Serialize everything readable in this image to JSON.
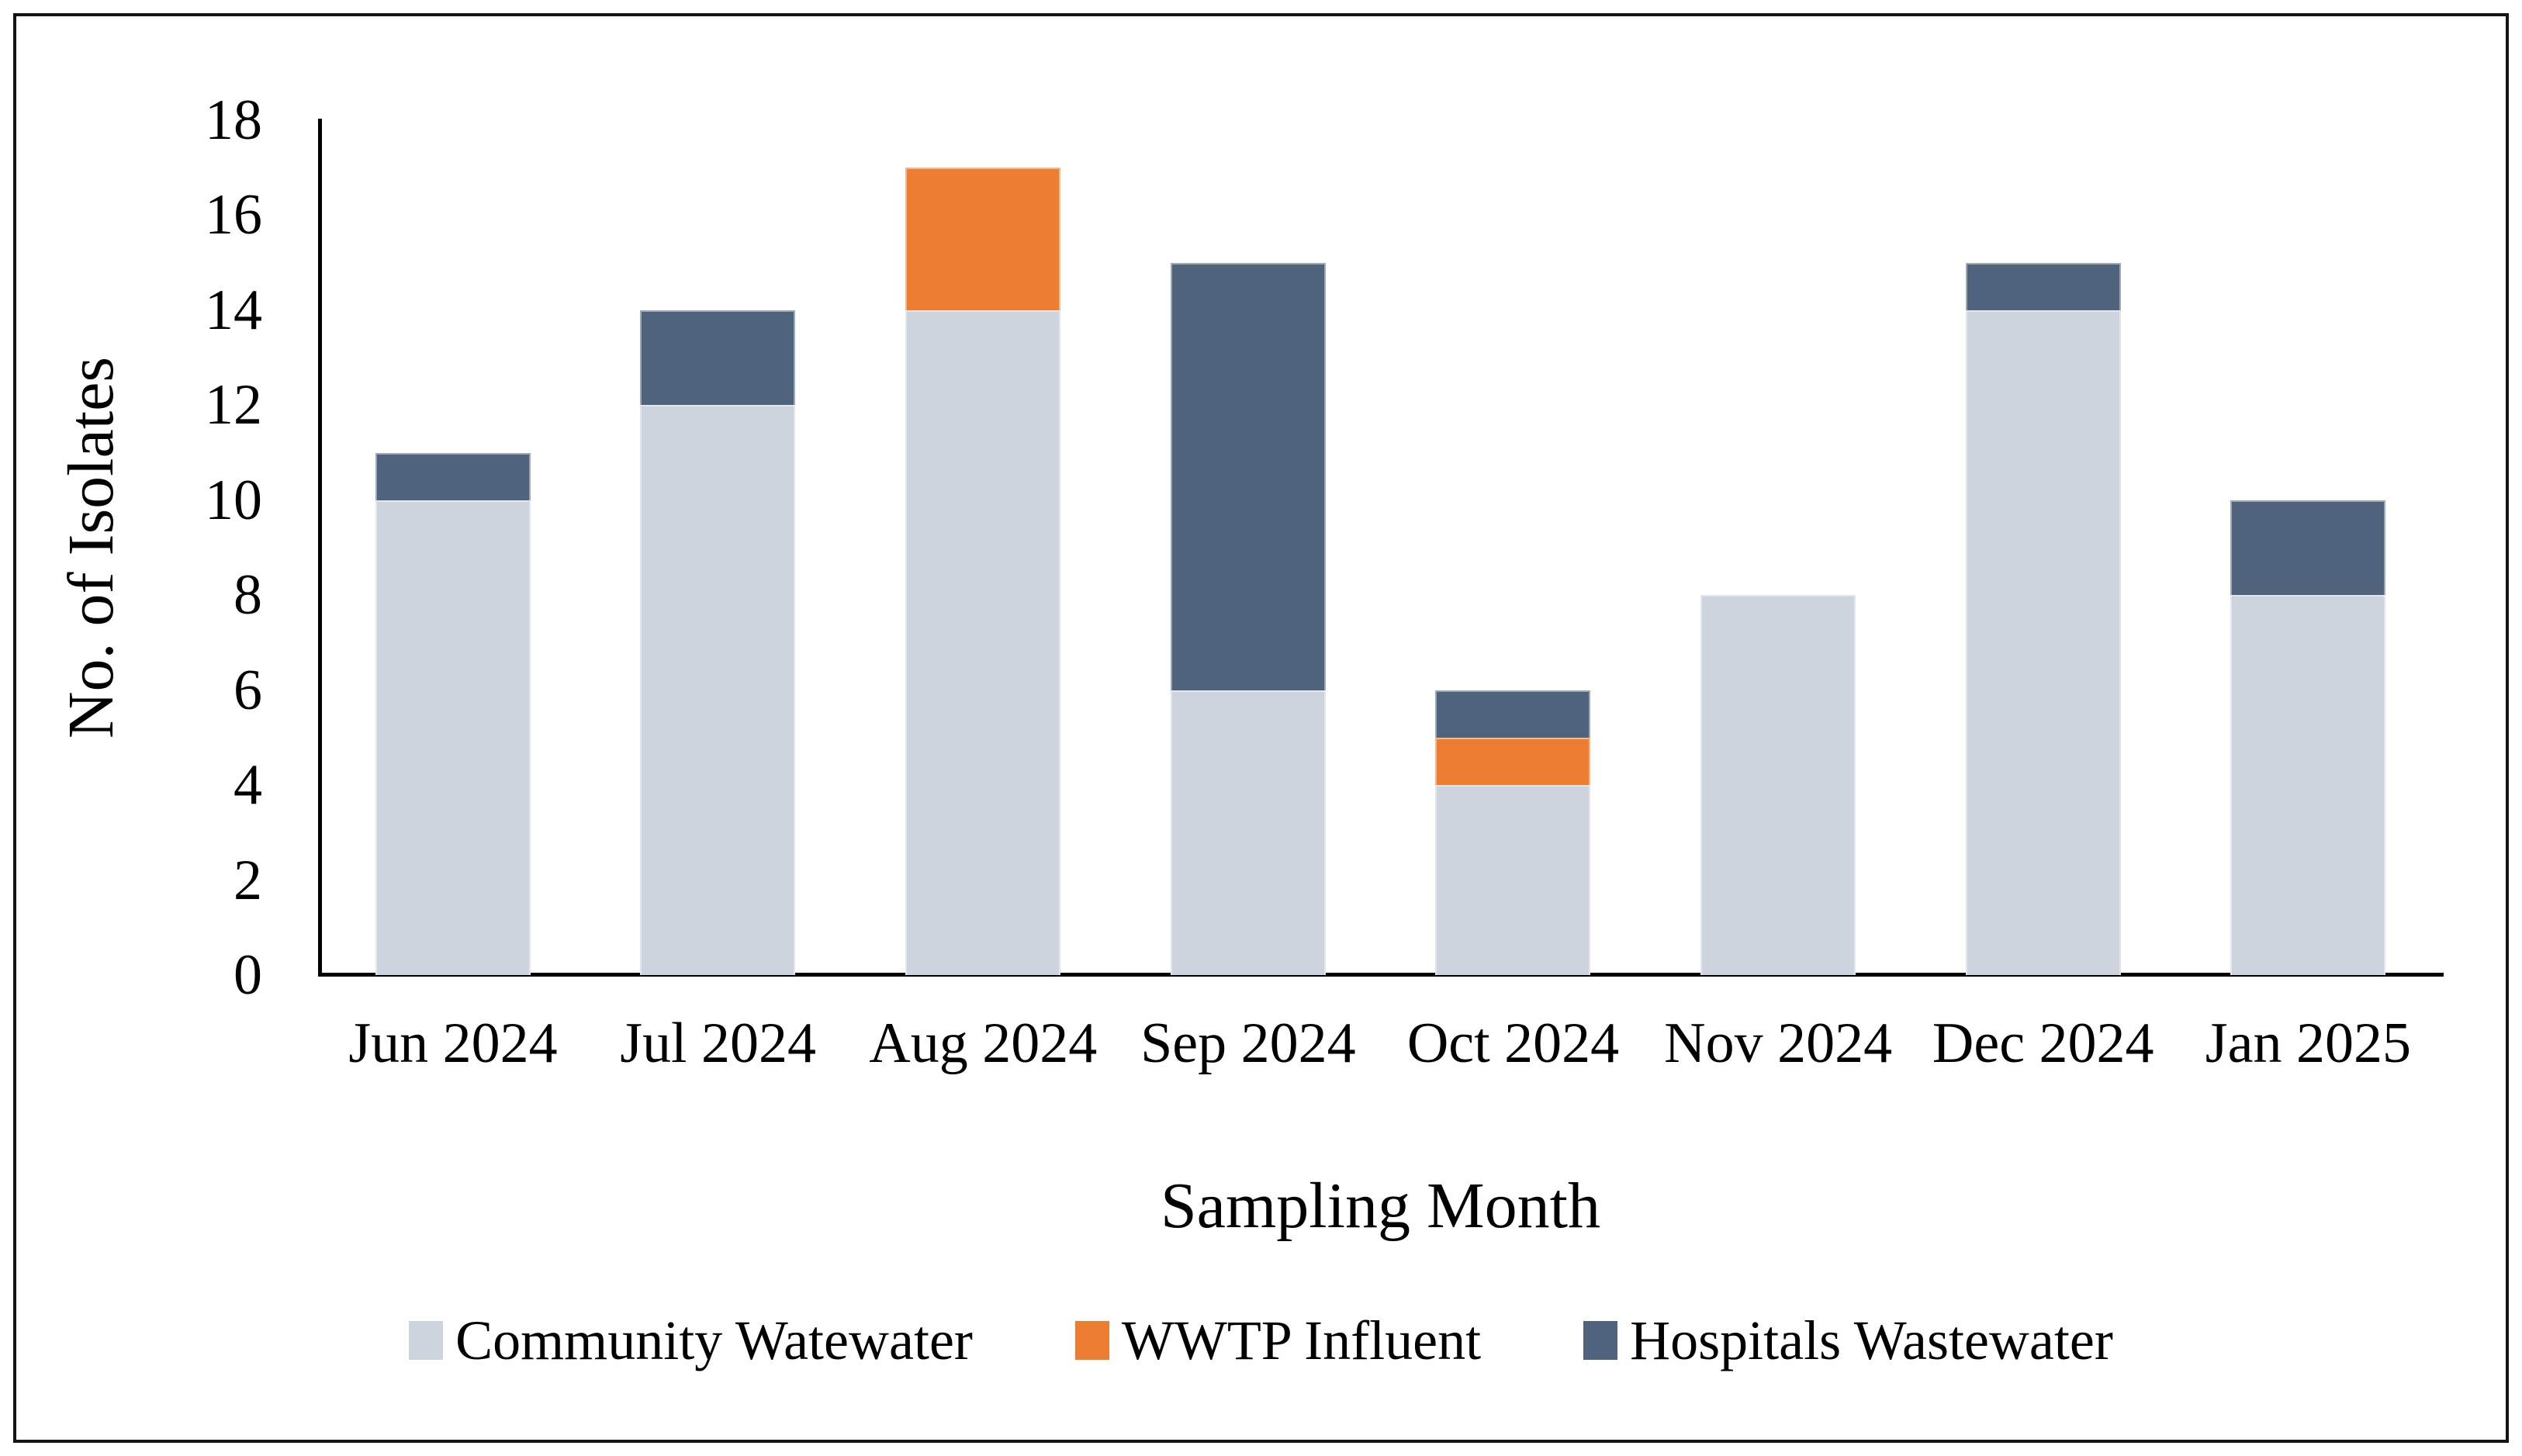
{
  "figure": {
    "x_axis_title": "Sampling Month",
    "y_axis_title": "No. of Isolates"
  },
  "chart_data": {
    "type": "bar",
    "stacked": true,
    "title": "",
    "xlabel": "Sampling Month",
    "ylabel": "No. of Isolates",
    "categories": [
      "Jun 2024",
      "Jul 2024",
      "Aug 2024",
      "Sep 2024",
      "Oct 2024",
      "Nov 2024",
      "Dec 2024",
      "Jan 2025"
    ],
    "series": [
      {
        "name": "Community Watewater",
        "color": "#CDD4DE",
        "values": [
          10,
          12,
          14,
          6,
          4,
          8,
          14,
          8
        ]
      },
      {
        "name": "WWTP Influent",
        "color": "#ED7D31",
        "values": [
          0,
          0,
          3,
          0,
          1,
          0,
          0,
          0
        ]
      },
      {
        "name": "Hospitals Wastewater",
        "color": "#4F637D",
        "values": [
          1,
          2,
          0,
          9,
          1,
          0,
          1,
          2
        ]
      }
    ],
    "totals": [
      11,
      14,
      17,
      15,
      6,
      8,
      15,
      10
    ],
    "ylim": [
      0,
      18
    ],
    "yticks": [
      0,
      2,
      4,
      6,
      8,
      10,
      12,
      14,
      16,
      18
    ],
    "grid": false,
    "legend_position": "bottom",
    "axis_color": "#000000"
  }
}
